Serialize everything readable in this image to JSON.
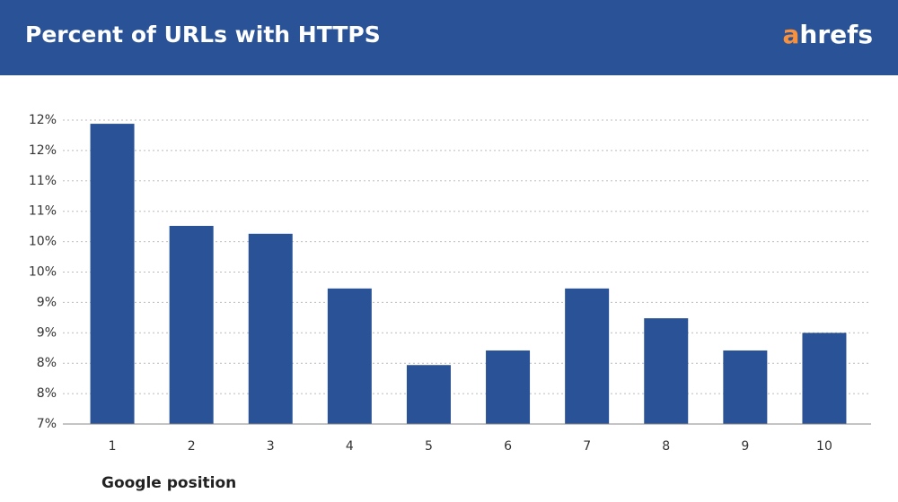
{
  "logo": [
    "a",
    "hrefs"
  ],
  "chart_data": {
    "type": "bar",
    "title": "Percent of URLs with HTTPS",
    "x_label": "Google position",
    "categories": [
      "1",
      "2",
      "3",
      "4",
      "5",
      "6",
      "7",
      "8",
      "9",
      "10"
    ],
    "values": [
      11.94,
      10.26,
      10.13,
      9.23,
      7.97,
      8.21,
      9.23,
      8.74,
      8.21,
      8.5
    ],
    "color": "#2a5297",
    "ylim": [
      7,
      12
    ],
    "yticks": [
      {
        "value": 7,
        "label": "7%"
      },
      {
        "value": 7.5,
        "label": "8%"
      },
      {
        "value": 8,
        "label": "8%"
      },
      {
        "value": 8.5,
        "label": "9%"
      },
      {
        "value": 9,
        "label": "9%"
      },
      {
        "value": 9.5,
        "label": "10%"
      },
      {
        "value": 10,
        "label": "10%"
      },
      {
        "value": 10.5,
        "label": "11%"
      },
      {
        "value": 11,
        "label": "11%"
      },
      {
        "value": 11.5,
        "label": "12%"
      },
      {
        "value": 12,
        "label": "12%"
      }
    ],
    "grid": true
  }
}
